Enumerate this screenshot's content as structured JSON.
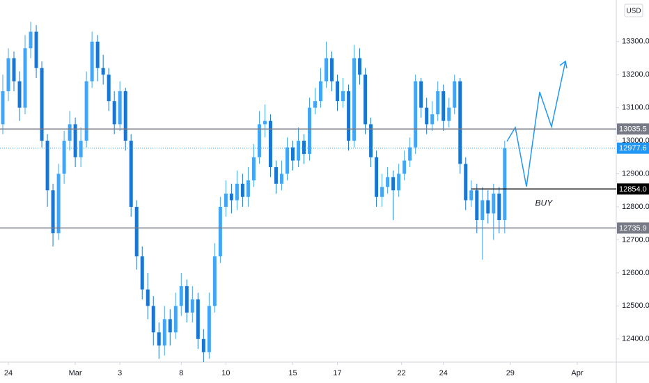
{
  "chart_data": {
    "type": "candlestick",
    "currency": "USD",
    "open": [
      13050,
      13150,
      13250,
      13180,
      13100,
      13280,
      13330,
      13220,
      13000,
      12850,
      12720,
      12900,
      13000,
      13050,
      12950,
      13000,
      13180,
      13300,
      13220,
      13200,
      13120,
      13050,
      13150,
      13000,
      12800,
      12650,
      12550,
      12500,
      12420,
      12380,
      12460,
      12420,
      12500,
      12560,
      12480,
      12520,
      12400,
      12360,
      12500,
      12650,
      12800,
      12840,
      12820,
      12870,
      12830,
      12880,
      12950,
      13050,
      13060,
      12920,
      12870,
      12900,
      12980,
      12940,
      13000,
      12960,
      13100,
      13120,
      13180,
      13250,
      13180,
      13120,
      13150,
      13000,
      13250,
      13200,
      13050,
      12950,
      12830,
      12860,
      12890,
      12850,
      12900,
      12940,
      12980,
      13180,
      13100,
      13050,
      13080,
      13150,
      13060,
      13100,
      13180,
      12930,
      12820,
      12850,
      12760,
      12820,
      12780,
      12840,
      12760
    ],
    "high": [
      13200,
      13280,
      13270,
      13210,
      13320,
      13360,
      13350,
      13240,
      13020,
      12870,
      12930,
      13030,
      13090,
      13070,
      13040,
      13210,
      13330,
      13320,
      13260,
      13220,
      13150,
      13180,
      13160,
      13020,
      12820,
      12680,
      12600,
      12530,
      12450,
      12500,
      12490,
      12540,
      12600,
      12580,
      12560,
      12540,
      12430,
      12540,
      12690,
      12830,
      12880,
      12870,
      12910,
      12900,
      12920,
      12990,
      13090,
      13110,
      13080,
      12940,
      12940,
      13010,
      13000,
      13040,
      13020,
      13130,
      13160,
      13220,
      13300,
      13270,
      13200,
      13190,
      13170,
      13290,
      13280,
      13220,
      13070,
      12970,
      12900,
      12920,
      12910,
      12930,
      12970,
      13010,
      13200,
      13190,
      13130,
      13120,
      13180,
      13170,
      13130,
      13200,
      13190,
      12950,
      12880,
      12870,
      12860,
      12850,
      12870,
      12860,
      13000
    ],
    "low": [
      13020,
      13120,
      13150,
      13060,
      13080,
      13250,
      13190,
      12980,
      12800,
      12680,
      12700,
      12870,
      12970,
      12920,
      12920,
      12980,
      13160,
      13180,
      13170,
      13090,
      13020,
      13030,
      12970,
      12770,
      12610,
      12520,
      12460,
      12380,
      12340,
      12350,
      12380,
      12400,
      12470,
      12450,
      12450,
      12370,
      12330,
      12340,
      12480,
      12630,
      12770,
      12780,
      12790,
      12800,
      12800,
      12860,
      12930,
      13010,
      12890,
      12840,
      12850,
      12880,
      12910,
      12920,
      12930,
      12940,
      13080,
      13100,
      13160,
      13150,
      13090,
      13100,
      12970,
      12980,
      13170,
      13020,
      12920,
      12800,
      12800,
      12840,
      12760,
      12830,
      12880,
      12920,
      12960,
      13070,
      13020,
      13030,
      13060,
      13030,
      13040,
      13080,
      12900,
      12790,
      12800,
      12720,
      12640,
      12750,
      12700,
      12720,
      12720
    ],
    "close": [
      13150,
      13250,
      13180,
      13100,
      13280,
      13330,
      13220,
      13000,
      12850,
      12720,
      12900,
      13000,
      13050,
      12950,
      13000,
      13180,
      13300,
      13220,
      13200,
      13120,
      13050,
      13150,
      13000,
      12800,
      12650,
      12550,
      12500,
      12420,
      12380,
      12460,
      12420,
      12500,
      12560,
      12480,
      12520,
      12400,
      12360,
      12500,
      12650,
      12800,
      12840,
      12820,
      12870,
      12830,
      12880,
      12950,
      13050,
      13060,
      12920,
      12870,
      12900,
      12980,
      12940,
      13000,
      12960,
      13100,
      13120,
      13180,
      13250,
      13180,
      13120,
      13150,
      13000,
      13250,
      13200,
      13050,
      12950,
      12830,
      12860,
      12890,
      12850,
      12900,
      12940,
      12980,
      13180,
      13100,
      13050,
      13080,
      13150,
      13060,
      13100,
      13180,
      12930,
      12820,
      12850,
      12760,
      12820,
      12780,
      12840,
      12760,
      12977
    ],
    "up_color": "#42a5f5",
    "down_color": "#1976d2",
    "xlim": [
      -0.5,
      110
    ],
    "xticks": [
      {
        "value": 1,
        "label": "24"
      },
      {
        "value": 13,
        "label": "Mar"
      },
      {
        "value": 21,
        "label": "3"
      },
      {
        "value": 32,
        "label": "8"
      },
      {
        "value": 40,
        "label": "10"
      },
      {
        "value": 52,
        "label": "15"
      },
      {
        "value": 60,
        "label": "17"
      },
      {
        "value": 71.5,
        "label": "22"
      },
      {
        "value": 79,
        "label": "24"
      },
      {
        "value": 91,
        "label": "29"
      },
      {
        "value": 103,
        "label": "Apr"
      }
    ],
    "ylim": [
      12330,
      13426
    ],
    "yticks": [
      {
        "value": 12400,
        "label": "12400.0"
      },
      {
        "value": 12500,
        "label": "12500.0"
      },
      {
        "value": 12600,
        "label": "12600.0"
      },
      {
        "value": 12700,
        "label": "12700.0"
      },
      {
        "value": 12800,
        "label": "12800.0"
      },
      {
        "value": 12900,
        "label": "12900.0"
      },
      {
        "value": 13000,
        "label": "13000.0"
      },
      {
        "value": 13100,
        "label": "13100.0"
      },
      {
        "value": 13200,
        "label": "13200.0"
      },
      {
        "value": 13300,
        "label": "13300.0"
      }
    ],
    "levels": [
      {
        "price": 13035.5,
        "color": "#787b86",
        "style": "solid"
      },
      {
        "price": 12735.9,
        "color": "#787b86",
        "style": "solid"
      },
      {
        "price": {
          "value": 12854,
          "label": "12854.0"
        },
        "color": "#000000",
        "style": "solid",
        "start": 84
      },
      {
        "price": 12977.6,
        "color": "#2196f3",
        "style": "dotted"
      }
    ],
    "annotations": [
      {
        "text": "BUY",
        "x": 97,
        "y": 12810
      }
    ]
  }
}
